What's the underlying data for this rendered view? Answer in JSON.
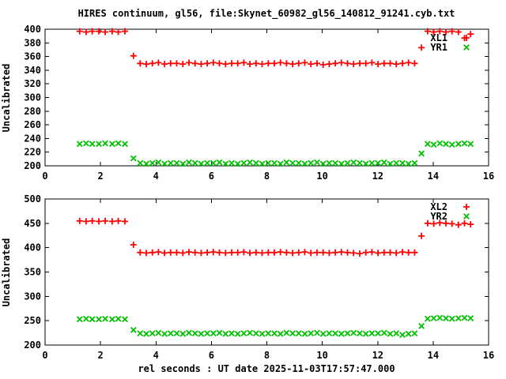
{
  "colors": {
    "background": "#ffffff",
    "foreground": "#000000",
    "series_red": "#ff0000",
    "series_green": "#00c000"
  },
  "chart_data": {
    "type": "scatter",
    "title": "HIRES continuum, gl56, file:Skynet_60982_gl56_140812_91241.cyb.txt",
    "xlim": [
      0,
      16
    ],
    "xticks": [
      0,
      2,
      4,
      6,
      8,
      10,
      12,
      14,
      16
    ],
    "grid": false,
    "legend_position": "top-right-inside",
    "x": [
      1.25,
      1.48,
      1.7,
      1.94,
      2.17,
      2.42,
      2.64,
      2.88,
      3.19,
      3.43,
      3.65,
      3.87,
      4.09,
      4.31,
      4.53,
      4.75,
      4.97,
      5.19,
      5.41,
      5.63,
      5.85,
      6.07,
      6.29,
      6.51,
      6.73,
      6.95,
      7.17,
      7.39,
      7.61,
      7.83,
      8.05,
      8.27,
      8.49,
      8.71,
      8.93,
      9.15,
      9.37,
      9.59,
      9.81,
      10.03,
      10.25,
      10.47,
      10.69,
      10.91,
      11.13,
      11.35,
      11.57,
      11.79,
      12.01,
      12.23,
      12.45,
      12.67,
      12.89,
      13.11,
      13.33,
      13.58,
      13.8,
      14.02,
      14.24,
      14.46,
      14.68,
      14.91,
      15.13,
      15.35
    ],
    "panels": [
      {
        "ylabel": "Uncalibrated",
        "ylim": [
          200,
          400
        ],
        "yticks": [
          200,
          220,
          240,
          260,
          280,
          300,
          320,
          340,
          360,
          380,
          400
        ],
        "series": [
          {
            "name": "XL1",
            "marker": "plus",
            "color": "#ff0000",
            "values": [
              397,
              396,
              397,
              397,
              396,
              397,
              396,
              397,
              361,
              350,
              349,
              350,
              351,
              349,
              350,
              350,
              349,
              351,
              350,
              349,
              350,
              351,
              350,
              349,
              350,
              350,
              351,
              349,
              350,
              349,
              350,
              350,
              351,
              350,
              349,
              350,
              351,
              349,
              350,
              348,
              349,
              350,
              351,
              350,
              349,
              350,
              350,
              351,
              349,
              350,
              350,
              349,
              350,
              351,
              350,
              373,
              397,
              396,
              397,
              396,
              397,
              396,
              387,
              393
            ]
          },
          {
            "name": "YR1",
            "marker": "cross",
            "color": "#00c000",
            "values": [
              232,
              233,
              232,
              232,
              233,
              232,
              233,
              232,
              211,
              204,
              203,
              204,
              205,
              203,
              204,
              204,
              203,
              205,
              204,
              203,
              204,
              204,
              205,
              203,
              204,
              203,
              204,
              205,
              204,
              203,
              204,
              204,
              203,
              205,
              204,
              204,
              203,
              204,
              205,
              203,
              204,
              204,
              203,
              204,
              205,
              204,
              203,
              204,
              204,
              205,
              203,
              204,
              204,
              203,
              204,
              218,
              232,
              231,
              233,
              232,
              231,
              232,
              233,
              232
            ]
          }
        ]
      },
      {
        "ylabel": "Uncalibrated",
        "xlabel": "rel seconds : UT date 2025-11-03T17:57:47.000",
        "ylim": [
          200,
          500
        ],
        "yticks": [
          200,
          250,
          300,
          350,
          400,
          450,
          500
        ],
        "series": [
          {
            "name": "XL2",
            "marker": "plus",
            "color": "#ff0000",
            "values": [
              455,
              454,
              455,
              454,
              455,
              454,
              455,
              454,
              406,
              390,
              389,
              390,
              391,
              389,
              390,
              390,
              389,
              391,
              390,
              389,
              390,
              391,
              390,
              389,
              390,
              390,
              391,
              389,
              390,
              389,
              390,
              390,
              391,
              390,
              389,
              390,
              391,
              389,
              390,
              390,
              389,
              390,
              391,
              390,
              389,
              388,
              390,
              391,
              389,
              390,
              390,
              389,
              391,
              390,
              390,
              424,
              450,
              449,
              451,
              450,
              449,
              447,
              450,
              448
            ]
          },
          {
            "name": "YR2",
            "marker": "cross",
            "color": "#00c000",
            "values": [
              253,
              254,
              253,
              253,
              254,
              253,
              254,
              253,
              231,
              224,
              223,
              224,
              225,
              223,
              224,
              224,
              223,
              225,
              224,
              223,
              224,
              224,
              225,
              223,
              224,
              223,
              224,
              225,
              224,
              223,
              224,
              224,
              223,
              225,
              224,
              224,
              223,
              224,
              225,
              223,
              224,
              224,
              223,
              224,
              225,
              224,
              223,
              224,
              224,
              225,
              223,
              224,
              221,
              223,
              224,
              239,
              254,
              255,
              256,
              255,
              254,
              255,
              256,
              255
            ]
          }
        ]
      }
    ]
  }
}
